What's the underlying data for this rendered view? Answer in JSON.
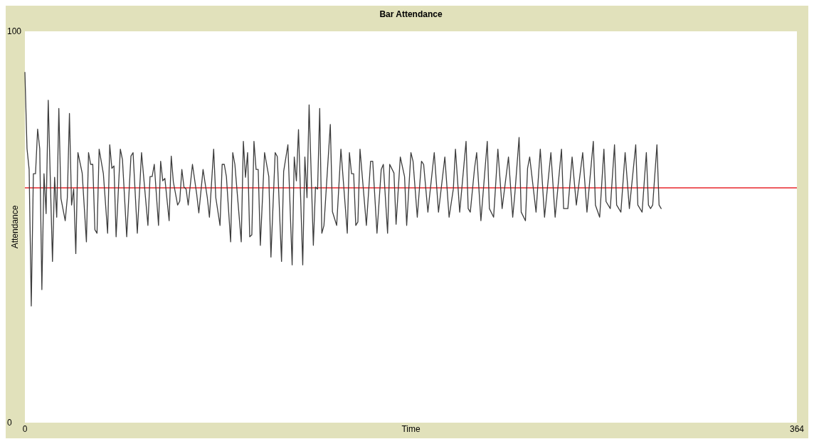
{
  "chart_data": {
    "type": "line",
    "title": "Bar Attendance",
    "xlabel": "Time",
    "ylabel": "Attendance",
    "xlim": [
      0,
      364
    ],
    "xticks": [
      0,
      364
    ],
    "ylim": [
      0,
      100
    ],
    "yticks": [
      0,
      100
    ],
    "line_style": "solid",
    "ref_lines": [
      {
        "axis": "y",
        "value": 60,
        "label": null,
        "color": "#e8262b"
      }
    ],
    "series": [
      {
        "color": "#3c3c3c",
        "x": [
          0,
          1,
          2,
          3,
          4,
          5,
          6,
          7,
          8,
          9,
          10,
          11,
          13,
          14,
          15,
          16,
          17,
          19,
          20,
          21,
          22,
          23,
          24,
          25,
          27,
          29,
          30,
          31,
          32,
          33,
          34,
          35,
          37,
          39,
          40,
          41,
          42,
          43,
          45,
          46,
          48,
          50,
          51,
          53,
          55,
          58,
          59,
          60,
          61,
          63,
          64,
          65,
          66,
          68,
          69,
          70,
          72,
          73,
          74,
          75,
          76,
          77,
          79,
          81,
          82,
          84,
          86,
          87,
          89,
          90,
          92,
          93,
          94,
          95,
          97,
          98,
          99,
          102,
          103,
          104,
          105,
          106,
          107,
          108,
          109,
          110,
          111,
          113,
          115,
          116,
          118,
          119,
          121,
          122,
          124,
          126,
          127,
          128,
          129,
          131,
          132,
          133,
          134,
          136,
          137,
          138,
          139,
          140,
          141,
          144,
          145,
          147,
          149,
          152,
          153,
          154,
          155,
          156,
          157,
          158,
          161,
          163,
          164,
          166,
          168,
          169,
          171,
          172,
          174,
          175,
          177,
          179,
          180,
          182,
          183,
          185,
          187,
          188,
          190,
          193,
          195,
          198,
          200,
          202,
          203,
          205,
          208,
          209,
          210,
          212,
          213,
          215,
          218,
          219,
          221,
          223,
          225,
          228,
          230,
          231,
          233,
          234,
          236,
          237,
          238,
          241,
          243,
          245,
          248,
          250,
          253,
          254,
          256,
          258,
          260,
          263,
          265,
          268,
          269,
          271,
          273,
          274,
          276,
          278,
          279,
          281,
          283,
          285,
          288,
          289,
          291,
          293,
          294,
          295,
          296,
          298,
          299,
          300
        ],
        "values": [
          89.5,
          70,
          64.7,
          29.8,
          63.6,
          63.6,
          75,
          70,
          34,
          63.6,
          53.4,
          82.4,
          41.2,
          62.7,
          52.5,
          80.3,
          57.3,
          51.6,
          57.5,
          79,
          55.6,
          59.7,
          43.2,
          69,
          63.8,
          46.2,
          69,
          66,
          66,
          49.3,
          48.4,
          69.9,
          63.6,
          48.4,
          71,
          65,
          65.6,
          47.5,
          69.9,
          67.2,
          47.5,
          68.1,
          69,
          48.4,
          69,
          50.4,
          62.9,
          62.9,
          66,
          50.4,
          66.8,
          61.8,
          62.4,
          51.6,
          68.1,
          61.5,
          55.6,
          56.6,
          64.7,
          60.2,
          59.7,
          55.6,
          66,
          58.4,
          53.6,
          64.7,
          57.5,
          52.5,
          69.9,
          57.5,
          50.4,
          66,
          66,
          62.9,
          46.2,
          69,
          66,
          46.2,
          71.9,
          62.7,
          69,
          47.5,
          48,
          71.9,
          64.7,
          64.7,
          45.3,
          69,
          62.9,
          42.3,
          69,
          68,
          41.2,
          64.2,
          71,
          40.3,
          67.9,
          61.8,
          74.9,
          40.3,
          67.9,
          57.5,
          81.2,
          45.3,
          60.2,
          59.7,
          80.3,
          48.4,
          50.4,
          76.2,
          53.9,
          50.4,
          69.9,
          48.4,
          69,
          63.6,
          63.6,
          50.4,
          51.3,
          69.9,
          50.4,
          66.8,
          66.8,
          48.4,
          64.7,
          66,
          48.4,
          66,
          63.8,
          50.7,
          67.9,
          62.9,
          50.4,
          69,
          66.8,
          52.5,
          66.8,
          66,
          53.8,
          69,
          53.8,
          67.9,
          52.5,
          59.7,
          69.9,
          53.8,
          71.9,
          54.7,
          53.8,
          65,
          69,
          51.6,
          71.9,
          54.7,
          52.5,
          69.9,
          54.7,
          67.9,
          52.5,
          58.4,
          72.9,
          53.8,
          51.6,
          65,
          67.9,
          53.8,
          69.9,
          52.5,
          69,
          52.5,
          69.9,
          54.7,
          54.7,
          67.9,
          55.6,
          69,
          53.8,
          71.9,
          55.6,
          52.5,
          69.9,
          56.5,
          54.7,
          71,
          55.6,
          53.8,
          69,
          54.7,
          71,
          55.6,
          53.8,
          69,
          55.6,
          54.7,
          55.6,
          71,
          55.6,
          54.7
        ]
      }
    ]
  }
}
